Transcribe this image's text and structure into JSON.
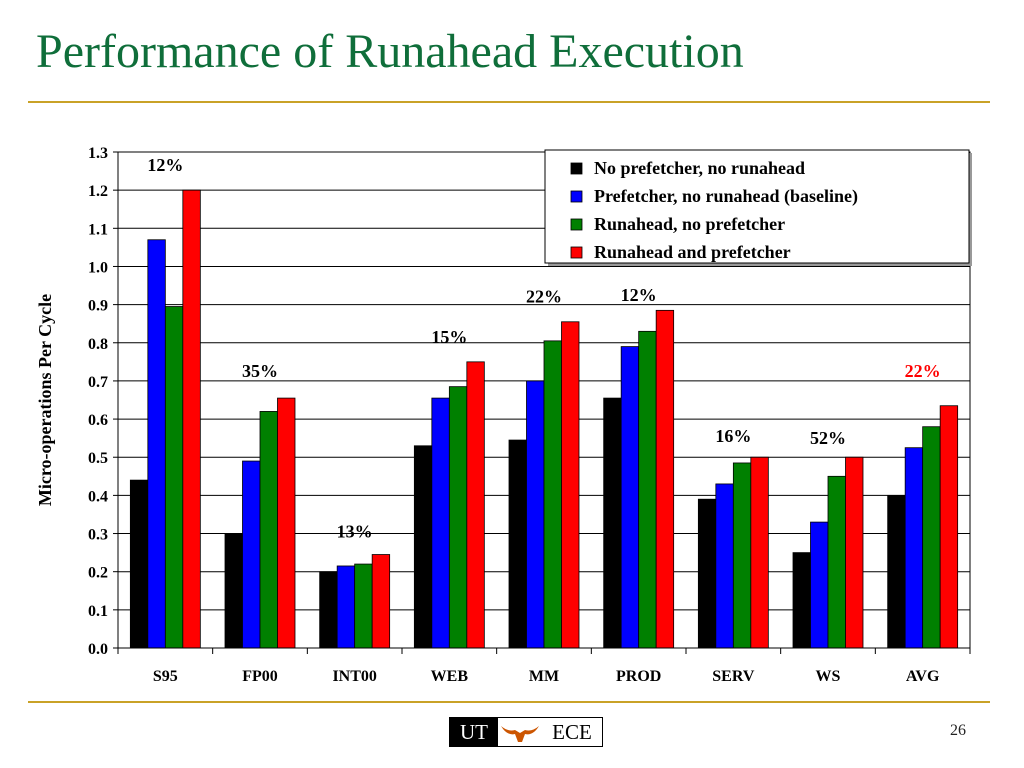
{
  "slide": {
    "title": "Performance of Runahead Execution",
    "page_number": "26",
    "logo": {
      "left_text": "UT",
      "right_text": "ECE"
    }
  },
  "colors": {
    "accent_rule": "#c9a227",
    "title": "#0f6e3a",
    "series": [
      "#000000",
      "#0000ff",
      "#008000",
      "#ff0000"
    ],
    "highlight_label": "#ff0000"
  },
  "chart_data": {
    "type": "bar",
    "title": "",
    "xlabel": "",
    "ylabel": "Micro-operations Per Cycle",
    "ylim": [
      0.0,
      1.3
    ],
    "yticks": [
      "0.0",
      "0.1",
      "0.2",
      "0.3",
      "0.4",
      "0.5",
      "0.6",
      "0.7",
      "0.8",
      "0.9",
      "1.0",
      "1.1",
      "1.2",
      "1.3"
    ],
    "grid": true,
    "legend_position": "top-right",
    "categories": [
      "S95",
      "FP00",
      "INT00",
      "WEB",
      "MM",
      "PROD",
      "SERV",
      "WS",
      "AVG"
    ],
    "series": [
      {
        "name": "No prefetcher, no runahead",
        "values": [
          0.44,
          0.3,
          0.2,
          0.53,
          0.545,
          0.655,
          0.39,
          0.25,
          0.4
        ]
      },
      {
        "name": "Prefetcher, no runahead (baseline)",
        "values": [
          1.07,
          0.49,
          0.215,
          0.655,
          0.7,
          0.79,
          0.43,
          0.33,
          0.525
        ]
      },
      {
        "name": "Runahead, no prefetcher",
        "values": [
          0.895,
          0.62,
          0.22,
          0.685,
          0.805,
          0.83,
          0.485,
          0.45,
          0.58
        ]
      },
      {
        "name": "Runahead and prefetcher",
        "values": [
          1.2,
          0.655,
          0.245,
          0.75,
          0.855,
          0.885,
          0.5,
          0.5,
          0.635
        ]
      }
    ],
    "annotations": [
      {
        "category": "S95",
        "text": "12%",
        "y": 1.25,
        "highlight": false
      },
      {
        "category": "FP00",
        "text": "35%",
        "y": 0.71,
        "highlight": false
      },
      {
        "category": "INT00",
        "text": "13%",
        "y": 0.29,
        "highlight": false
      },
      {
        "category": "WEB",
        "text": "15%",
        "y": 0.8,
        "highlight": false
      },
      {
        "category": "MM",
        "text": "22%",
        "y": 0.905,
        "highlight": false
      },
      {
        "category": "PROD",
        "text": "12%",
        "y": 0.91,
        "highlight": false
      },
      {
        "category": "SERV",
        "text": "16%",
        "y": 0.54,
        "highlight": false
      },
      {
        "category": "WS",
        "text": "52%",
        "y": 0.535,
        "highlight": false
      },
      {
        "category": "AVG",
        "text": "22%",
        "y": 0.71,
        "highlight": true
      }
    ]
  }
}
